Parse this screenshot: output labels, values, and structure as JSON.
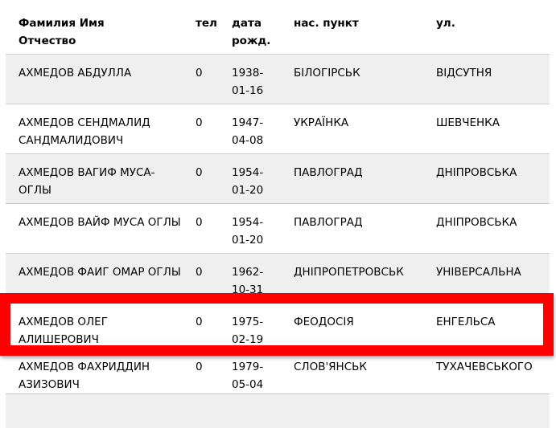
{
  "table": {
    "columns": [
      {
        "key": "name",
        "label": "Фамилия Имя Отчество"
      },
      {
        "key": "tel",
        "label": "тел"
      },
      {
        "key": "dob",
        "label": "дата рожд."
      },
      {
        "key": "city",
        "label": "нас. пункт"
      },
      {
        "key": "street",
        "label": "ул."
      }
    ],
    "rows": [
      {
        "name": "АХМЕДОВ АБДУЛЛА",
        "tel": "0",
        "dob": "1938-01-16",
        "city": "БІЛОГІРСЬК",
        "street": "ВІДСУТНЯ",
        "shade": "gray",
        "highlighted": false
      },
      {
        "name": "АХМЕДОВ СЕНДМАЛИД САНДМАЛИДОВИЧ",
        "tel": "0",
        "dob": "1947-04-08",
        "city": "УКРАЇНКА",
        "street": "ШЕВЧЕНКА",
        "shade": "white",
        "highlighted": false
      },
      {
        "name": "АХМЕДОВ ВАГИФ МУСА-ОГЛЫ",
        "tel": "0",
        "dob": "1954-01-20",
        "city": "ПАВЛОГРАД",
        "street": "ДНІПРОВСЬКА",
        "shade": "gray",
        "highlighted": false
      },
      {
        "name": "АХМЕДОВ ВАЙФ МУСА ОГЛЫ",
        "tel": "0",
        "dob": "1954-01-20",
        "city": "ПАВЛОГРАД",
        "street": "ДНІПРОВСЬКА",
        "shade": "white",
        "highlighted": false
      },
      {
        "name": "АХМЕДОВ ФАИГ ОМАР ОГЛЫ",
        "tel": "0",
        "dob": "1962-10-31",
        "city": "ДНІПРОПЕТРОВСЬК",
        "street": "УНІВЕРСАЛЬНА",
        "shade": "gray",
        "highlighted": false
      },
      {
        "name": "АХМЕДОВ ОЛЕГ АЛИШЕРОВИЧ",
        "tel": "0",
        "dob": "1975-02-19",
        "city": "ФЕОДОСІЯ",
        "street": "ЕНГЕЛЬСА",
        "shade": "white",
        "highlighted": true
      },
      {
        "name": "АХМЕДОВ ФАХРИДДИН АЗИЗОВИЧ",
        "tel": "0",
        "dob": "1979-05-04",
        "city": "СЛОВ'ЯНСЬК",
        "street": "ТУХАЧЕВСЬКОГО",
        "shade": "white",
        "highlighted": false
      }
    ]
  },
  "colors": {
    "stripe_gray": "#efefef",
    "row_border": "#cccccc",
    "highlight_red": "#ff0000",
    "text": "#000000"
  }
}
